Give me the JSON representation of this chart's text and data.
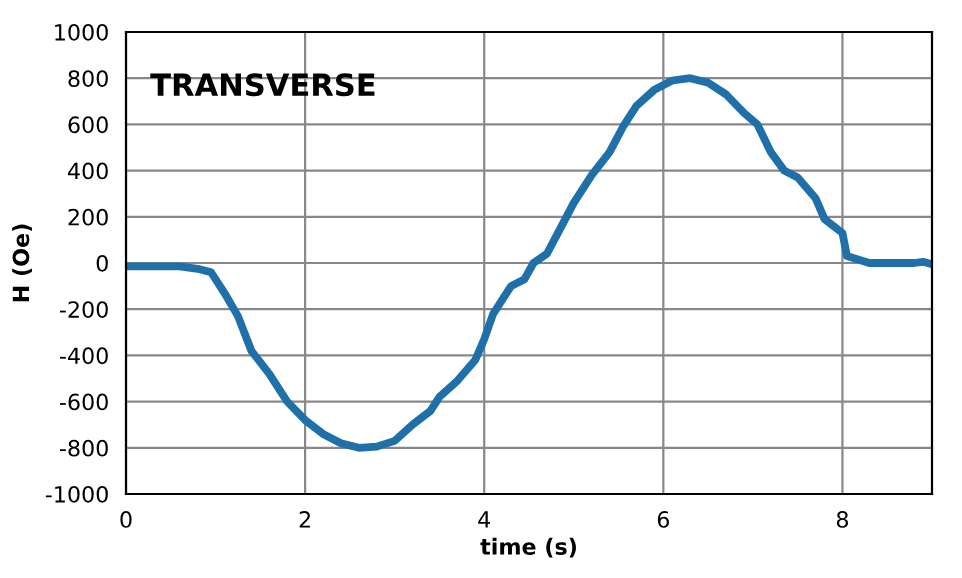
{
  "chart_data": {
    "type": "line",
    "title": "TRANSVERSE",
    "xlabel": "time (s)",
    "ylabel": "H (Oe)",
    "x": [
      0,
      0.6,
      0.8,
      0.95,
      1.1,
      1.25,
      1.4,
      1.6,
      1.8,
      2.0,
      2.2,
      2.4,
      2.6,
      2.8,
      3.0,
      3.2,
      3.4,
      3.5,
      3.7,
      3.9,
      4.0,
      4.1,
      4.2,
      4.3,
      4.45,
      4.55,
      4.7,
      4.85,
      5.0,
      5.2,
      5.4,
      5.55,
      5.7,
      5.9,
      6.1,
      6.3,
      6.5,
      6.7,
      6.9,
      7.05,
      7.2,
      7.35,
      7.5,
      7.7,
      7.8,
      8.0,
      8.05,
      8.3,
      8.8,
      8.9,
      9.0
    ],
    "series": [
      {
        "color": "#1f6fa8",
        "values": [
          -15,
          -15,
          -25,
          -40,
          -130,
          -230,
          -380,
          -480,
          -600,
          -680,
          -740,
          -780,
          -800,
          -795,
          -770,
          -700,
          -640,
          -580,
          -510,
          -420,
          -330,
          -220,
          -160,
          -100,
          -70,
          0,
          40,
          150,
          260,
          380,
          480,
          590,
          680,
          750,
          790,
          800,
          780,
          730,
          650,
          600,
          480,
          400,
          370,
          280,
          190,
          130,
          30,
          0,
          0,
          5,
          -5
        ]
      }
    ],
    "xlim": [
      0,
      9
    ],
    "xticks": [
      0,
      2,
      4,
      6,
      8
    ],
    "ylim": [
      -1000,
      1000
    ],
    "yticks": [
      -1000,
      -800,
      -600,
      -400,
      -200,
      0,
      200,
      400,
      600,
      800,
      1000
    ],
    "grid": true,
    "marker": "none",
    "line_style": "solid"
  }
}
